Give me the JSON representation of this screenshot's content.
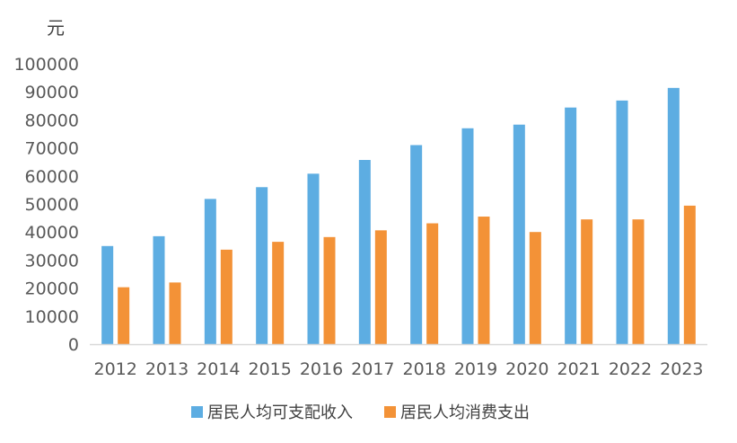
{
  "chart_data": {
    "type": "bar",
    "y_unit": "元",
    "categories": [
      "2012",
      "2013",
      "2014",
      "2015",
      "2016",
      "2017",
      "2018",
      "2019",
      "2020",
      "2021",
      "2022",
      "2023"
    ],
    "series": [
      {
        "name": "居民人均可支配收入",
        "color": "#5dade2",
        "values": [
          35000,
          38500,
          51800,
          56000,
          60800,
          65700,
          71000,
          77000,
          78300,
          84400,
          86900,
          91400
        ]
      },
      {
        "name": "居民人均消费支出",
        "color": "#f39237",
        "values": [
          20300,
          22000,
          33700,
          36500,
          38200,
          40600,
          43100,
          45500,
          40000,
          44500,
          44500,
          49400
        ]
      }
    ],
    "yticks": [
      "0",
      "10000",
      "20000",
      "30000",
      "40000",
      "50000",
      "60000",
      "70000",
      "80000",
      "90000",
      "100000"
    ],
    "ylim": [
      0,
      100000
    ],
    "grid": false,
    "legend_position": "bottom"
  }
}
